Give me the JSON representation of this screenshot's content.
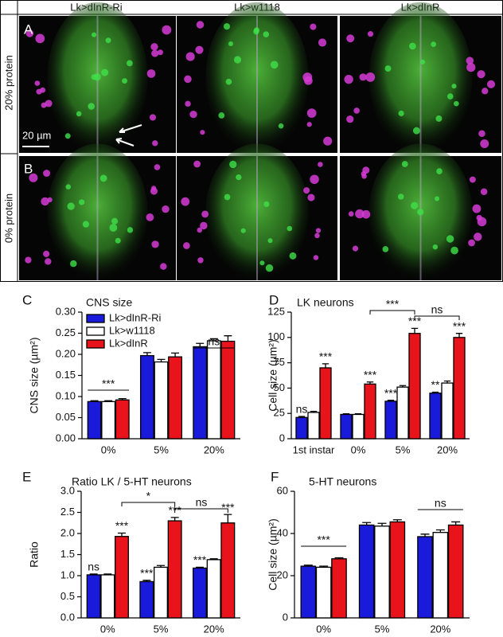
{
  "figure": {
    "column_headers": [
      "Lk>dInR-Ri",
      "Lk>w1118",
      "Lk>dInR"
    ],
    "row_labels": [
      "20% protein",
      "0% protein"
    ],
    "panel_letters": [
      "A",
      "B"
    ],
    "scale_bar": "20 µm"
  },
  "chart_data": [
    {
      "type": "bar",
      "label": "C",
      "title": "CNS size",
      "y_label": "CNS size (µm²)",
      "categories": [
        "0%",
        "5%",
        "20%"
      ],
      "series": [
        {
          "name": "Lk>dInR-Ri",
          "color": "#1a1adb",
          "values": [
            0.088,
            0.197,
            0.218
          ],
          "errors": [
            0.002,
            0.007,
            0.008
          ]
        },
        {
          "name": "Lk>w1118",
          "color": "#ffffff",
          "values": [
            0.088,
            0.182,
            0.232
          ],
          "errors": [
            0.002,
            0.006,
            0.005
          ]
        },
        {
          "name": "Lk>dInR",
          "color": "#e8131b",
          "values": [
            0.092,
            0.194,
            0.231
          ],
          "errors": [
            0.003,
            0.009,
            0.013
          ]
        }
      ],
      "ylim": [
        0,
        0.3
      ],
      "yticks": [
        {
          "value": 0,
          "label": "0.00"
        },
        0.05,
        {
          "value": 0.1,
          "label": "0.10"
        },
        0.15,
        {
          "value": 0.2,
          "label": "0.20"
        },
        0.25,
        {
          "value": 0.3,
          "label": "0.30"
        }
      ],
      "legend": "upper left",
      "annotations": [
        "***",
        "ns"
      ]
    },
    {
      "type": "bar",
      "label": "D",
      "title": "LK neurons",
      "y_label": "Cell size (µm²)",
      "categories": [
        "1st instar",
        "0%",
        "5%",
        "20%"
      ],
      "series": [
        {
          "color": "#1a1adb",
          "values": [
            21,
            24,
            37,
            45
          ],
          "errors": [
            1,
            0.6,
            1,
            1
          ]
        },
        {
          "color": "#ffffff",
          "values": [
            26,
            24,
            51,
            55
          ],
          "errors": [
            1,
            0.6,
            1.5,
            2
          ]
        },
        {
          "color": "#e8131b",
          "values": [
            70,
            54,
            104,
            100
          ],
          "errors": [
            4,
            2,
            5,
            4
          ]
        }
      ],
      "ylim": [
        0,
        125
      ],
      "yticks": [
        0,
        25,
        50,
        75,
        100,
        125
      ],
      "annotations": [
        "ns",
        "***",
        "***",
        "***",
        "***",
        "**",
        "***",
        "***",
        "ns"
      ]
    },
    {
      "type": "bar",
      "label": "E",
      "title": "Ratio LK / 5-HT neurons",
      "y_label": "Ratio",
      "categories": [
        "0%",
        "5%",
        "20%"
      ],
      "series": [
        {
          "color": "#1a1adb",
          "values": [
            1.02,
            0.86,
            1.18
          ],
          "errors": [
            0.02,
            0.03,
            0.02
          ]
        },
        {
          "color": "#ffffff",
          "values": [
            1.02,
            1.2,
            1.38
          ],
          "errors": [
            0.02,
            0.04,
            0.02
          ]
        },
        {
          "color": "#e8131b",
          "values": [
            1.93,
            2.3,
            2.25
          ],
          "errors": [
            0.08,
            0.08,
            0.2
          ]
        }
      ],
      "ylim": [
        0,
        3
      ],
      "yticks": [
        {
          "value": 0,
          "label": "0.0"
        },
        0.5,
        {
          "value": 1,
          "label": "1.0"
        },
        1.5,
        {
          "value": 2,
          "label": "2.0"
        },
        2.5,
        {
          "value": 3,
          "label": "3.0"
        }
      ],
      "annotations": [
        "ns",
        "***",
        "***",
        "***",
        "***",
        "***",
        "*",
        "ns"
      ]
    },
    {
      "type": "bar",
      "label": "F",
      "title": "5-HT neurons",
      "y_label": "Cell size (µm²)",
      "categories": [
        "0%",
        "5%",
        "20%"
      ],
      "series": [
        {
          "color": "#1a1adb",
          "values": [
            24.5,
            44,
            38.5
          ],
          "errors": [
            0.5,
            1.2,
            1.2
          ]
        },
        {
          "color": "#ffffff",
          "values": [
            24,
            43.5,
            40.5
          ],
          "errors": [
            0.5,
            1.3,
            1.2
          ]
        },
        {
          "color": "#e8131b",
          "values": [
            28,
            45.5,
            44
          ],
          "errors": [
            0.5,
            1,
            1.5
          ]
        }
      ],
      "ylim": [
        0,
        60
      ],
      "yticks": [
        0,
        20,
        40,
        60
      ],
      "annotations": [
        "***",
        "ns"
      ]
    }
  ]
}
